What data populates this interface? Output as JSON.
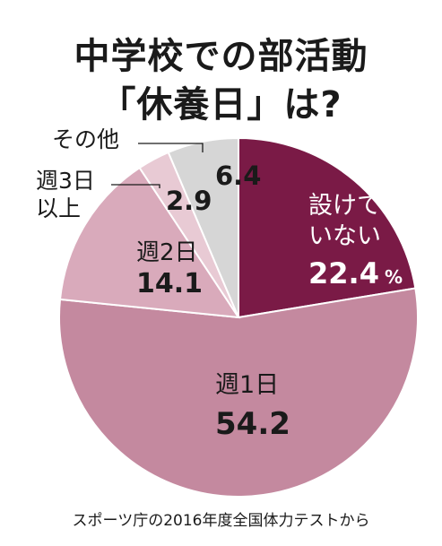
{
  "title_line1": "中学校での部活動",
  "title_line2": "「休養日」は?",
  "caption": "スポーツ庁の2016年度全国体力テストから",
  "colors": {
    "none": "#7a1a46",
    "once": "#c4899f",
    "twice": "#d9aabb",
    "three_plus": "#e8cad4",
    "other": "#d6d6d6",
    "label_dark": "#ffffff",
    "label_light": "#1a1a1a"
  },
  "chart_data": {
    "type": "pie",
    "unit": "%",
    "slices": [
      {
        "key": "none",
        "label_lines": [
          "設けて",
          "いない"
        ],
        "value": 22.4,
        "value_text": "22.4",
        "show_unit": true
      },
      {
        "key": "once",
        "label_lines": [
          "週1日"
        ],
        "value": 54.2,
        "value_text": "54.2",
        "show_unit": false
      },
      {
        "key": "twice",
        "label_lines": [
          "週2日"
        ],
        "value": 14.1,
        "value_text": "14.1",
        "show_unit": false
      },
      {
        "key": "three_plus",
        "label_lines": [
          "週3日",
          "以上"
        ],
        "value": 2.9,
        "value_text": "2.9",
        "show_unit": false
      },
      {
        "key": "other",
        "label_lines": [
          "その他"
        ],
        "value": 6.4,
        "value_text": "6.4",
        "show_unit": false
      }
    ]
  }
}
